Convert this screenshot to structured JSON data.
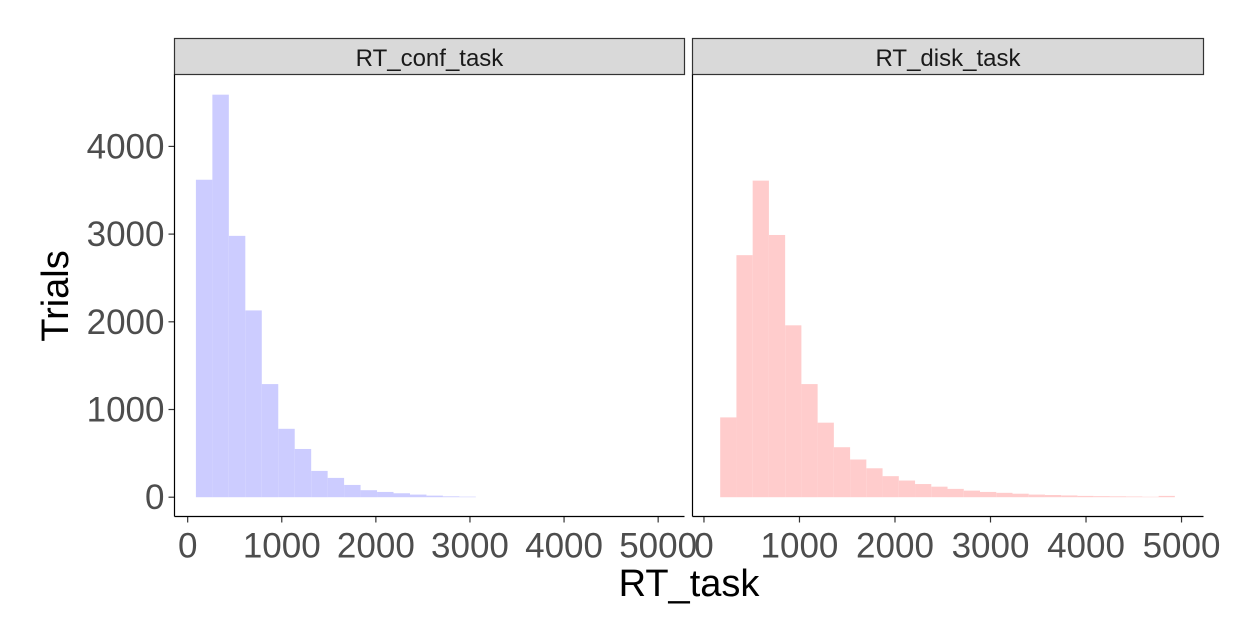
{
  "chart_data": {
    "type": "bar",
    "xlabel": "RT_task",
    "ylabel": "Trials",
    "grid": false,
    "legend": "none",
    "yticks": [
      0,
      1000,
      2000,
      3000,
      4000
    ],
    "ylim": [
      -220,
      4820
    ],
    "panels": [
      {
        "name": "RT_conf_task",
        "color": "#ccccff",
        "xlim": [
          -140,
          5280
        ],
        "xticks": [
          "0",
          "1000",
          "2000",
          "3000",
          "4000",
          "5000"
        ],
        "xtick_values": [
          0,
          1000,
          2000,
          3000,
          4000,
          5000
        ],
        "bin_width": 175,
        "bin_centers": [
          175,
          350,
          525,
          700,
          875,
          1050,
          1225,
          1400,
          1575,
          1750,
          1925,
          2100,
          2275,
          2450,
          2625,
          2800,
          2975
        ],
        "values": [
          3620,
          4590,
          2980,
          2130,
          1290,
          780,
          550,
          300,
          220,
          140,
          80,
          60,
          45,
          30,
          18,
          10,
          6
        ]
      },
      {
        "name": "RT_disk_task",
        "color": "#ffcccc",
        "xlim": [
          -120,
          5230
        ],
        "xticks": [
          "0",
          "1000",
          "2000",
          "3000",
          "4000",
          "5000"
        ],
        "xtick_values": [
          0,
          1000,
          2000,
          3000,
          4000,
          5000
        ],
        "bin_width": 170,
        "bin_centers": [
          255,
          425,
          595,
          765,
          935,
          1105,
          1275,
          1445,
          1615,
          1785,
          1955,
          2125,
          2295,
          2465,
          2635,
          2805,
          2975,
          3145,
          3315,
          3485,
          3655,
          3825,
          3995,
          4165,
          4335,
          4505,
          4675,
          4845
        ],
        "values": [
          910,
          2760,
          3610,
          2990,
          1960,
          1290,
          850,
          570,
          430,
          330,
          240,
          190,
          150,
          120,
          95,
          75,
          60,
          50,
          40,
          30,
          25,
          20,
          15,
          12,
          10,
          8,
          5,
          15
        ]
      }
    ]
  }
}
